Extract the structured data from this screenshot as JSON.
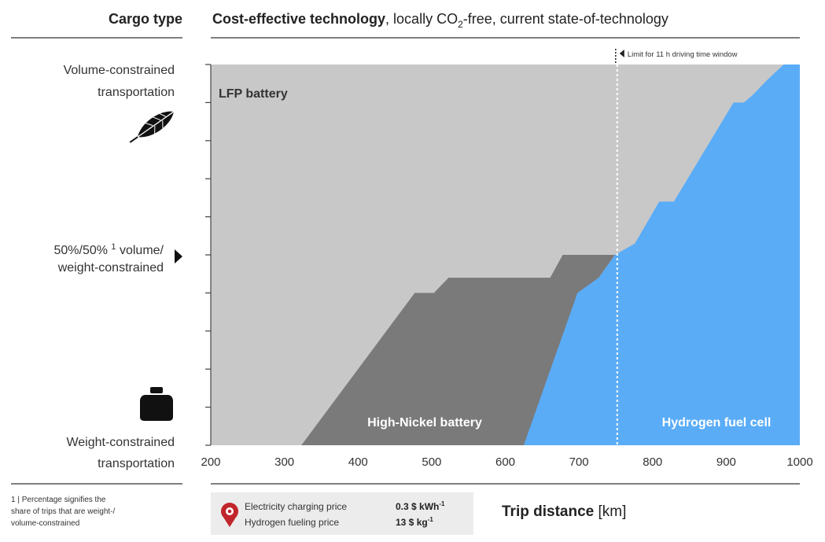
{
  "header": {
    "cargo_type": "Cargo type",
    "title_bold": "Cost-effective technology",
    "title_rest_a": ", locally CO",
    "title_sub": "2",
    "title_rest_b": "-free, current state-of-technology"
  },
  "left_labels": {
    "top_line1": "Volume-constrained",
    "top_line2": "transportation",
    "mid_line1": "50%/50% ",
    "mid_sup": "1",
    "mid_line1b": " volume/",
    "mid_line2": "weight-constrained",
    "bottom_line1": "Weight-constrained",
    "bottom_line2": "transportation"
  },
  "footnote": {
    "line1": "1 | Percentage signifies the",
    "line2": "share of trips that are weight-/",
    "line3": "volume-constrained"
  },
  "legend_box": {
    "electricity_label": "Electricity charging price",
    "electricity_value": "0.3 $ kWh",
    "electricity_sup": "-1",
    "hydrogen_label": "Hydrogen fueling price",
    "hydrogen_value": "13 $ kg",
    "hydrogen_sup": "-1"
  },
  "colors": {
    "lfp": "#c8c8c8",
    "high_nickel": "#7a7a7a",
    "hydrogen": "#5aacf7",
    "location_pin": "#c0262b"
  },
  "icons": {
    "top": "feather-icon",
    "bottom": "weight-icon",
    "middle": "triangle-marker-icon",
    "legend": "location-pin-icon"
  },
  "chart_data": {
    "type": "area",
    "xlabel_bold": "Trip distance",
    "xlabel_unit": " [km]",
    "xlim": [
      200,
      1000
    ],
    "ylim": [
      0,
      100
    ],
    "x_ticks": [
      200,
      300,
      400,
      500,
      600,
      700,
      800,
      900,
      1000
    ],
    "y_ticks": [
      0,
      10,
      20,
      30,
      40,
      50,
      60,
      70,
      80,
      90,
      100
    ],
    "limit_line": {
      "x": 752,
      "label": "Limit for 11 h driving time window"
    },
    "regions": [
      {
        "name": "LFP battery",
        "points": [
          [
            200,
            0
          ],
          [
            200,
            100
          ],
          [
            1000,
            100
          ],
          [
            1000,
            0
          ]
        ]
      },
      {
        "name": "High-Nickel battery",
        "points": [
          [
            323,
            0
          ],
          [
            477,
            40
          ],
          [
            490,
            40
          ],
          [
            503,
            40
          ],
          [
            523,
            44
          ],
          [
            661,
            44
          ],
          [
            678,
            50
          ],
          [
            749,
            50
          ],
          [
            727,
            44
          ],
          [
            699,
            40
          ],
          [
            671,
            20
          ],
          [
            655,
            0
          ]
        ]
      },
      {
        "name": "Hydrogen fuel cell",
        "points": [
          [
            625,
            0
          ],
          [
            698,
            40
          ],
          [
            727,
            44
          ],
          [
            749,
            50
          ],
          [
            776,
            53
          ],
          [
            809,
            64
          ],
          [
            829,
            64
          ],
          [
            910,
            90
          ],
          [
            924,
            90
          ],
          [
            936,
            92
          ],
          [
            956,
            96
          ],
          [
            978,
            100
          ],
          [
            1000,
            100
          ],
          [
            1000,
            0
          ]
        ]
      }
    ]
  }
}
